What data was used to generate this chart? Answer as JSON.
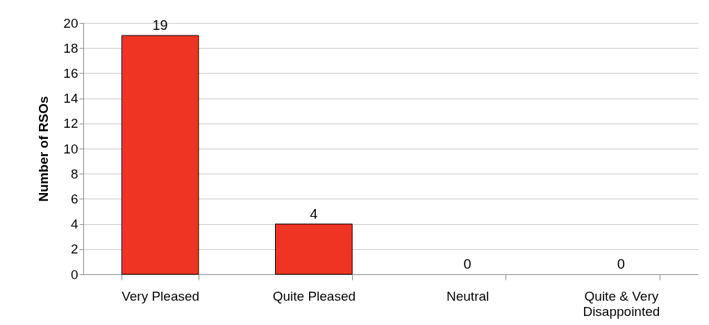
{
  "chart_data": {
    "type": "bar",
    "ylabel": "Number of RSOs",
    "categories": [
      "Very Pleased",
      "Quite Pleased",
      "Neutral",
      "Quite & Very Disappointed"
    ],
    "values": [
      19,
      4,
      0,
      0
    ],
    "color": "#ee3524",
    "ylim": [
      0,
      20
    ],
    "yticks": [
      0,
      2,
      4,
      6,
      8,
      10,
      12,
      14,
      16,
      18,
      20
    ],
    "grid": "y",
    "data_labels": true
  }
}
